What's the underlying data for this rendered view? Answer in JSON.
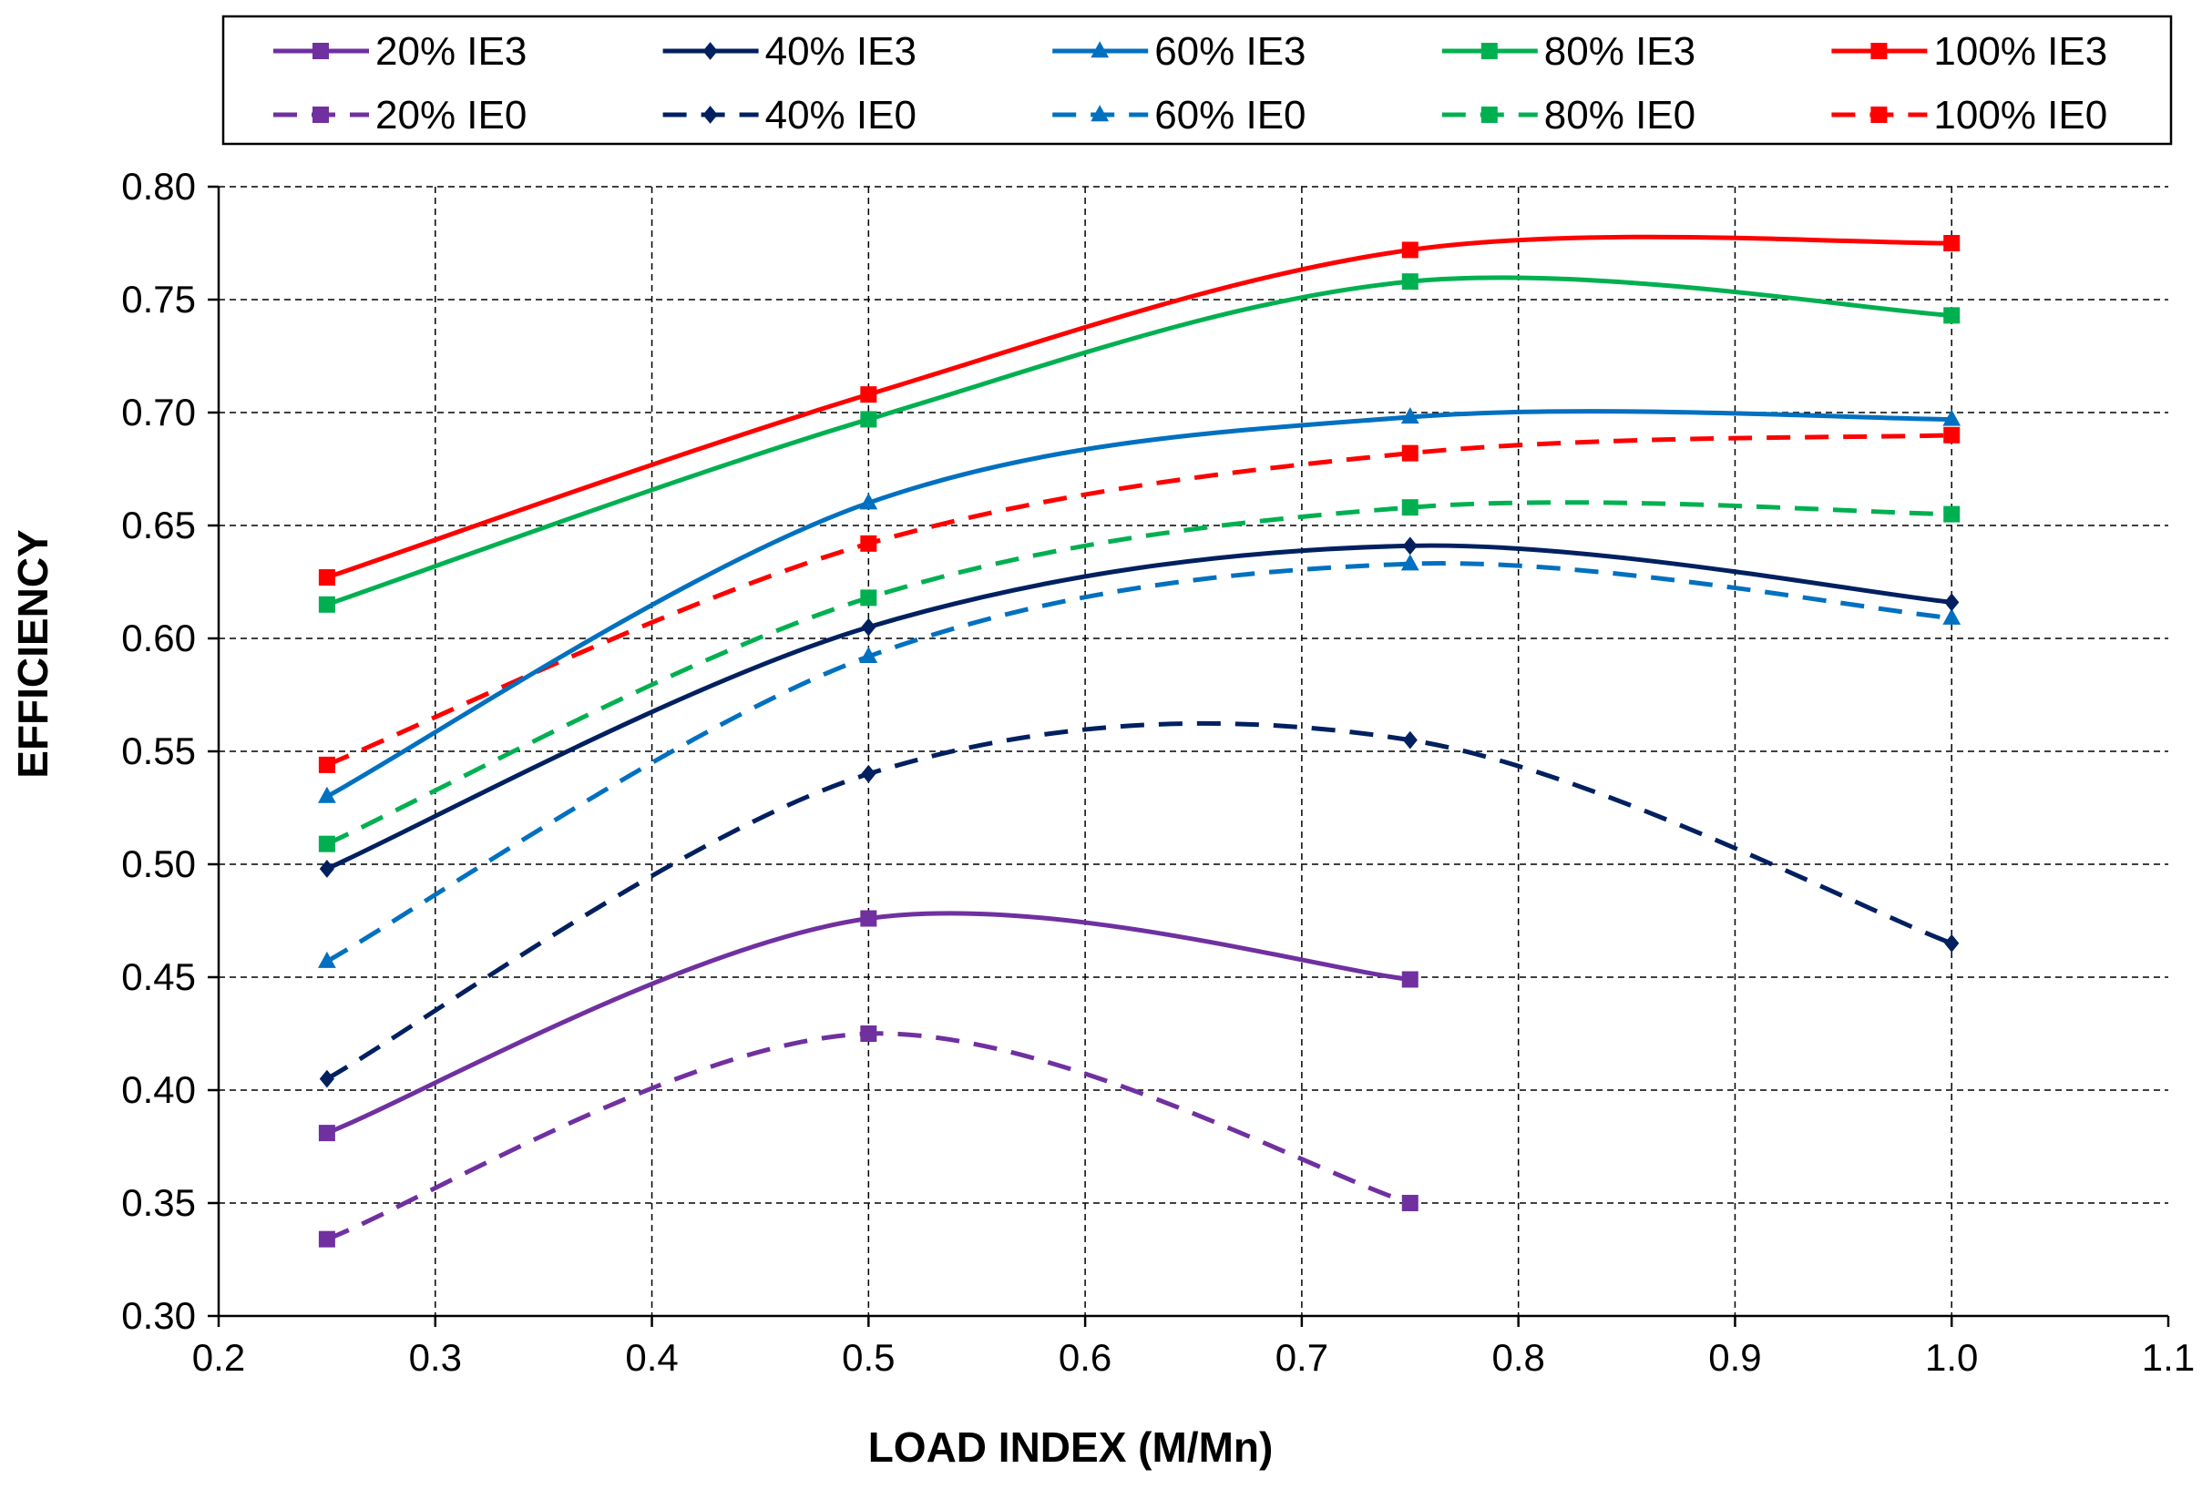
{
  "chart_data": {
    "type": "line",
    "title": "",
    "xlabel": "LOAD INDEX (M/Mn)",
    "ylabel": "EFFICIENCY",
    "xlim": [
      0.2,
      1.1
    ],
    "ylim": [
      0.3,
      0.8
    ],
    "xticks": [
      "0.2",
      "0.3",
      "0.4",
      "0.5",
      "0.6",
      "0.7",
      "0.8",
      "0.9",
      "1.0",
      "1.1"
    ],
    "yticks": [
      "0.30",
      "0.35",
      "0.40",
      "0.45",
      "0.50",
      "0.55",
      "0.60",
      "0.65",
      "0.70",
      "0.75",
      "0.80"
    ],
    "grid": true,
    "legend_position": "top",
    "series": [
      {
        "name": "20% IE3",
        "color": "#7030A0",
        "dash": false,
        "marker": "square",
        "x": [
          0.25,
          0.5,
          0.75
        ],
        "y": [
          0.381,
          0.476,
          0.449
        ]
      },
      {
        "name": "40% IE3",
        "color": "#002060",
        "dash": false,
        "marker": "diamond",
        "x": [
          0.25,
          0.5,
          0.75,
          1.0
        ],
        "y": [
          0.498,
          0.605,
          0.641,
          0.616
        ]
      },
      {
        "name": "60% IE3",
        "color": "#0070C0",
        "dash": false,
        "marker": "triangle",
        "x": [
          0.25,
          0.5,
          0.75,
          1.0
        ],
        "y": [
          0.53,
          0.66,
          0.698,
          0.697
        ]
      },
      {
        "name": "80% IE3",
        "color": "#00B050",
        "dash": false,
        "marker": "square",
        "x": [
          0.25,
          0.5,
          0.75,
          1.0
        ],
        "y": [
          0.615,
          0.697,
          0.758,
          0.743
        ]
      },
      {
        "name": "100% IE3",
        "color": "#FF0000",
        "dash": false,
        "marker": "square",
        "x": [
          0.25,
          0.5,
          0.75,
          1.0
        ],
        "y": [
          0.627,
          0.708,
          0.772,
          0.775
        ]
      },
      {
        "name": "20% IE0",
        "color": "#7030A0",
        "dash": true,
        "marker": "square",
        "x": [
          0.25,
          0.5,
          0.75
        ],
        "y": [
          0.334,
          0.425,
          0.35
        ]
      },
      {
        "name": "40% IE0",
        "color": "#002060",
        "dash": true,
        "marker": "diamond",
        "x": [
          0.25,
          0.5,
          0.75,
          1.0
        ],
        "y": [
          0.405,
          0.54,
          0.555,
          0.465
        ]
      },
      {
        "name": "60% IE0",
        "color": "#0070C0",
        "dash": true,
        "marker": "triangle",
        "x": [
          0.25,
          0.5,
          0.75,
          1.0
        ],
        "y": [
          0.457,
          0.592,
          0.633,
          0.609
        ]
      },
      {
        "name": "80% IE0",
        "color": "#00B050",
        "dash": true,
        "marker": "square",
        "x": [
          0.25,
          0.5,
          0.75,
          1.0
        ],
        "y": [
          0.509,
          0.618,
          0.658,
          0.655
        ]
      },
      {
        "name": "100% IE0",
        "color": "#FF0000",
        "dash": true,
        "marker": "square",
        "x": [
          0.25,
          0.5,
          0.75,
          1.0
        ],
        "y": [
          0.544,
          0.642,
          0.682,
          0.69
        ]
      }
    ]
  }
}
